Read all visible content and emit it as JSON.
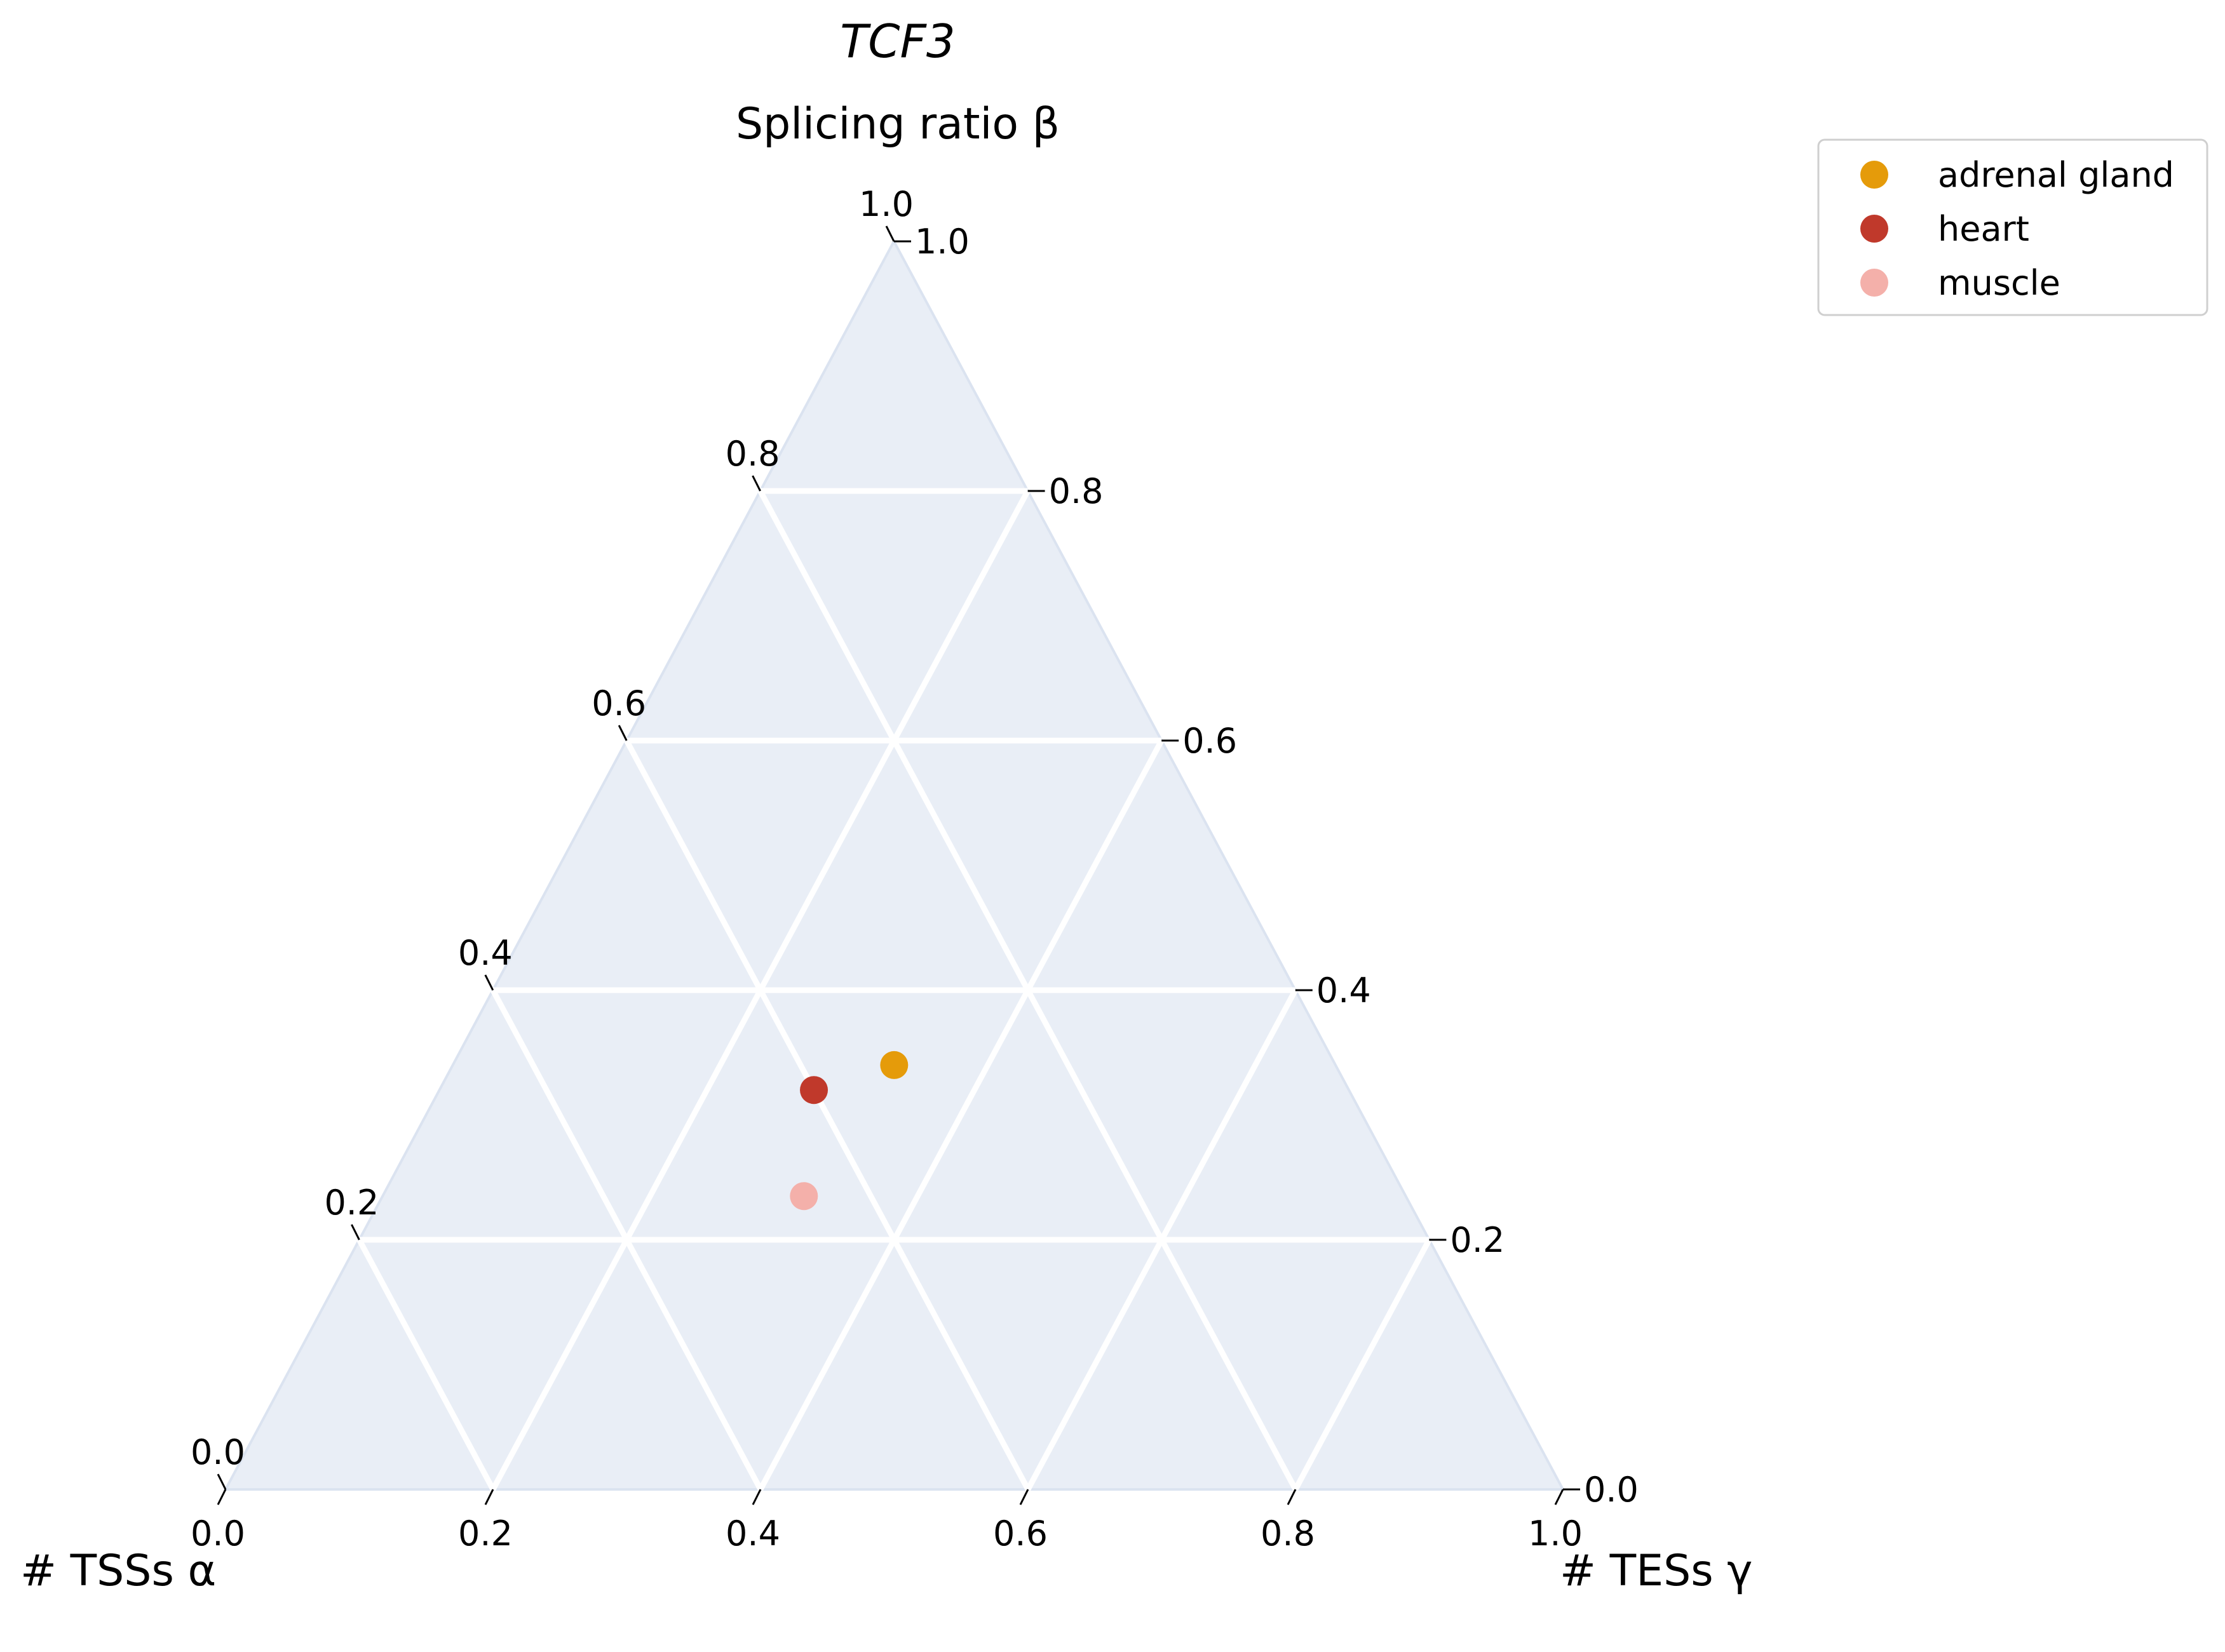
{
  "chart_data": {
    "type": "scatter",
    "subtype": "ternary",
    "title": "TCF3",
    "axes": {
      "top": "Splicing ratio β",
      "left": "# TSSs α",
      "right": "# TESs γ"
    },
    "ticks": {
      "left": [
        "0.0",
        "0.2",
        "0.4",
        "0.6",
        "0.8",
        "1.0"
      ],
      "bottom": [
        "0.0",
        "0.2",
        "0.4",
        "0.6",
        "0.8",
        "1.0"
      ],
      "right": [
        "0.0",
        "0.2",
        "0.4",
        "0.6",
        "0.8",
        "1.0"
      ]
    },
    "grid": true,
    "legend_position": "top-right",
    "background_color": "#e9eef6",
    "grid_color": "#ffffff",
    "series": [
      {
        "name": "adrenal gland",
        "color": "#e59b0a",
        "points": [
          {
            "alpha": 0.33,
            "beta": 0.34,
            "gamma": 0.33
          }
        ]
      },
      {
        "name": "heart",
        "color": "#c0392b",
        "points": [
          {
            "alpha": 0.4,
            "beta": 0.32,
            "gamma": 0.28
          }
        ]
      },
      {
        "name": "muscle",
        "color": "#f4b0aa",
        "points": [
          {
            "alpha": 0.45,
            "beta": 0.235,
            "gamma": 0.315
          }
        ]
      }
    ]
  }
}
